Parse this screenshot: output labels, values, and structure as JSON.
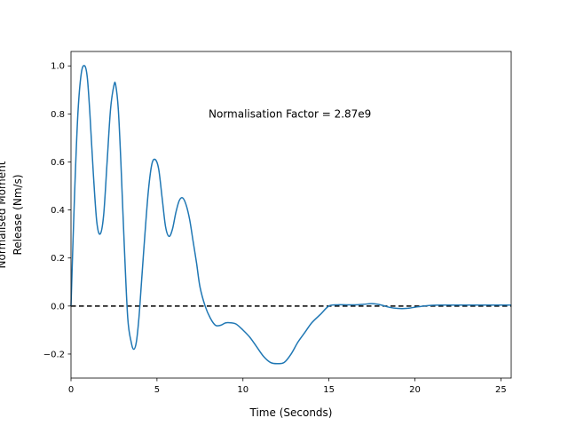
{
  "chart_data": {
    "type": "line",
    "title": "",
    "xlabel": "Time (Seconds)",
    "ylabel_lines": [
      "Normalised Moment",
      "Release (Nm/s)"
    ],
    "xlim": [
      0,
      25.6
    ],
    "ylim": [
      -0.3,
      1.06
    ],
    "xticks": [
      0,
      5,
      10,
      15,
      20,
      25
    ],
    "yticks": [
      -0.2,
      0.0,
      0.2,
      0.4,
      0.6,
      0.8,
      1.0
    ],
    "xtick_labels": [
      "0",
      "5",
      "10",
      "15",
      "20",
      "25"
    ],
    "ytick_labels": [
      "−0.2",
      "0.0",
      "0.2",
      "0.4",
      "0.6",
      "0.8",
      "1.0"
    ],
    "grid": false,
    "annotation": {
      "text": "Normalisation Factor = 2.87e9",
      "x": 8.0,
      "y": 0.8
    },
    "reference_line": {
      "y": 0.0,
      "style": "dashed",
      "color": "#000000"
    },
    "series": [
      {
        "color": "#1f77b4",
        "x": [
          0.0,
          0.2,
          0.4,
          0.6,
          0.8,
          0.95,
          1.1,
          1.3,
          1.5,
          1.7,
          1.9,
          2.1,
          2.3,
          2.5,
          2.6,
          2.75,
          2.9,
          3.1,
          3.3,
          3.5,
          3.65,
          3.8,
          3.95,
          4.1,
          4.3,
          4.5,
          4.7,
          4.9,
          5.1,
          5.3,
          5.5,
          5.7,
          5.9,
          6.1,
          6.3,
          6.5,
          6.7,
          6.9,
          7.1,
          7.3,
          7.5,
          7.8,
          8.1,
          8.4,
          8.7,
          9.0,
          9.3,
          9.6,
          10.0,
          10.4,
          10.8,
          11.2,
          11.6,
          12.0,
          12.4,
          12.8,
          13.2,
          13.6,
          14.0,
          14.5,
          15.0,
          15.5,
          16.0,
          16.5,
          17.0,
          17.5,
          18.0,
          18.5,
          19.0,
          19.5,
          20.0,
          20.5,
          21.0,
          21.5,
          22.0,
          22.5,
          23.0,
          23.5,
          24.0,
          24.5,
          25.0,
          25.6
        ],
        "y": [
          0.0,
          0.45,
          0.8,
          0.97,
          1.0,
          0.95,
          0.8,
          0.55,
          0.35,
          0.3,
          0.38,
          0.6,
          0.82,
          0.92,
          0.92,
          0.82,
          0.6,
          0.25,
          -0.05,
          -0.15,
          -0.18,
          -0.15,
          -0.05,
          0.1,
          0.3,
          0.48,
          0.59,
          0.61,
          0.57,
          0.45,
          0.33,
          0.29,
          0.32,
          0.39,
          0.44,
          0.45,
          0.42,
          0.36,
          0.27,
          0.18,
          0.08,
          0.0,
          -0.05,
          -0.08,
          -0.08,
          -0.07,
          -0.07,
          -0.075,
          -0.1,
          -0.13,
          -0.17,
          -0.21,
          -0.235,
          -0.24,
          -0.235,
          -0.2,
          -0.15,
          -0.11,
          -0.07,
          -0.035,
          0.0,
          0.005,
          0.005,
          0.005,
          0.007,
          0.01,
          0.005,
          -0.005,
          -0.01,
          -0.01,
          -0.005,
          0.0,
          0.003,
          0.004,
          0.004,
          0.004,
          0.004,
          0.004,
          0.004,
          0.004,
          0.004,
          0.004
        ]
      }
    ]
  }
}
